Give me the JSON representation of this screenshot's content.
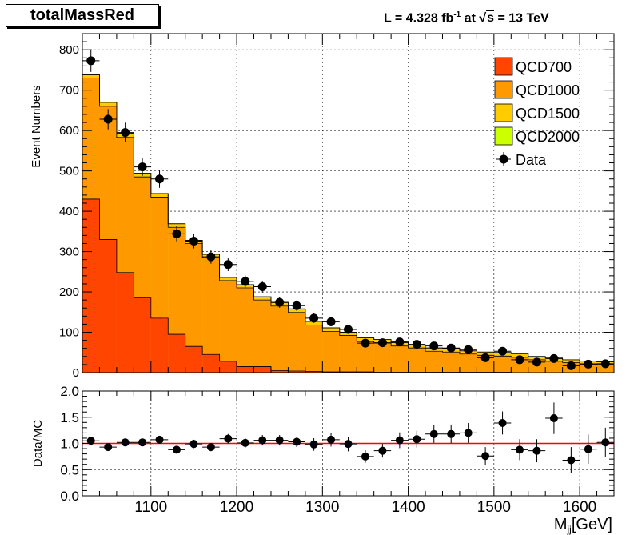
{
  "title": "totalMassRed",
  "luminosity": {
    "prefix": "L = 4.328 fb",
    "exponent": "-1",
    "mid": " at ",
    "root_symbol": "√",
    "energy_var": "s",
    "energy": " = 13 TeV"
  },
  "colors": {
    "QCD700": "#ff4500",
    "QCD1000": "#ff9900",
    "QCD1500": "#ffcc00",
    "QCD2000": "#ccff00",
    "data": "#000000",
    "ratio_line": "#ff0000"
  },
  "chart_data": [
    {
      "type": "bar",
      "stacked": true,
      "ylabel": "Event Numbers",
      "xlim": [
        1020,
        1640
      ],
      "ylim": [
        0,
        840
      ],
      "x_ticks": [
        1100,
        1200,
        1300,
        1400,
        1500,
        1600
      ],
      "y_ticks": [
        0,
        100,
        200,
        300,
        400,
        500,
        600,
        700,
        800
      ],
      "bin_edges": [
        1020,
        1040,
        1060,
        1080,
        1100,
        1120,
        1140,
        1160,
        1180,
        1200,
        1220,
        1240,
        1260,
        1280,
        1300,
        1320,
        1340,
        1360,
        1380,
        1400,
        1420,
        1440,
        1460,
        1480,
        1500,
        1520,
        1540,
        1560,
        1580,
        1600,
        1620,
        1640
      ],
      "series": [
        {
          "name": "QCD700",
          "values": [
            430,
            330,
            248,
            185,
            135,
            95,
            65,
            45,
            28,
            15,
            15,
            5,
            4,
            3,
            2,
            2,
            2,
            1,
            1,
            1,
            1,
            1,
            1,
            1,
            1,
            0,
            0,
            0,
            0,
            0,
            0
          ]
        },
        {
          "name": "QCD1000",
          "values": [
            300,
            330,
            335,
            300,
            300,
            265,
            255,
            240,
            200,
            195,
            165,
            160,
            145,
            115,
            100,
            90,
            75,
            72,
            65,
            60,
            52,
            50,
            45,
            42,
            40,
            38,
            32,
            28,
            25,
            22,
            20
          ]
        },
        {
          "name": "QCD1500",
          "values": [
            8,
            10,
            10,
            9,
            9,
            9,
            8,
            8,
            8,
            8,
            8,
            9,
            9,
            9,
            9,
            8,
            9,
            9,
            8,
            8,
            8,
            9,
            8,
            8,
            9,
            9,
            8,
            8,
            7,
            7,
            7
          ]
        },
        {
          "name": "QCD2000",
          "values": [
            0,
            0,
            0,
            0,
            0,
            0,
            0,
            0,
            0,
            0,
            0,
            0,
            0,
            0,
            0,
            0,
            0,
            0,
            0,
            0,
            0,
            0,
            0,
            0,
            0,
            0,
            0,
            0,
            0,
            0,
            0
          ]
        }
      ],
      "data_series": {
        "name": "Data",
        "x": [
          1030,
          1050,
          1070,
          1090,
          1110,
          1130,
          1150,
          1170,
          1190,
          1210,
          1230,
          1250,
          1270,
          1290,
          1310,
          1330,
          1350,
          1370,
          1390,
          1410,
          1430,
          1450,
          1470,
          1490,
          1510,
          1530,
          1550,
          1570,
          1590,
          1610,
          1630
        ],
        "y": [
          773,
          628,
          595,
          510,
          480,
          344,
          326,
          287,
          268,
          226,
          213,
          174,
          166,
          135,
          126,
          107,
          73,
          74,
          76,
          70,
          66,
          61,
          57,
          37,
          53,
          32,
          26,
          35,
          17,
          21,
          22
        ]
      },
      "legend": {
        "placement": "top-right",
        "entries": [
          "QCD700",
          "QCD1000",
          "QCD1500",
          "QCD2000",
          "Data"
        ]
      },
      "grid": true
    },
    {
      "type": "scatter",
      "ylabel": "Data/MC",
      "xlabel_main": "M",
      "xlabel_sub": "jj",
      "xlabel_unit": "[GeV]",
      "xlim": [
        1020,
        1640
      ],
      "ylim": [
        0,
        2.0
      ],
      "x_ticks": [
        1100,
        1200,
        1300,
        1400,
        1500,
        1600
      ],
      "y_ticks": [
        "0.0",
        "0.5",
        "1.0",
        "1.5",
        "2.0"
      ],
      "reference_line": 1.0,
      "x": [
        1030,
        1050,
        1070,
        1090,
        1110,
        1130,
        1150,
        1170,
        1190,
        1210,
        1230,
        1250,
        1270,
        1290,
        1310,
        1330,
        1350,
        1370,
        1390,
        1410,
        1430,
        1450,
        1470,
        1490,
        1510,
        1530,
        1550,
        1570,
        1590,
        1610,
        1630
      ],
      "y": [
        1.05,
        0.93,
        1.02,
        1.02,
        1.07,
        0.88,
        0.99,
        0.93,
        1.09,
        1.01,
        1.06,
        1.06,
        1.03,
        0.98,
        1.07,
        0.99,
        0.75,
        0.86,
        1.06,
        1.08,
        1.18,
        1.18,
        1.2,
        0.76,
        1.39,
        0.88,
        0.86,
        1.48,
        0.68,
        0.89,
        1.02
      ],
      "yerr": [
        0.05,
        0.06,
        0.06,
        0.07,
        0.07,
        0.07,
        0.08,
        0.08,
        0.09,
        0.09,
        0.1,
        0.1,
        0.1,
        0.12,
        0.13,
        0.14,
        0.12,
        0.13,
        0.15,
        0.16,
        0.17,
        0.18,
        0.19,
        0.17,
        0.22,
        0.2,
        0.22,
        0.3,
        0.25,
        0.28,
        0.28
      ],
      "grid": true
    }
  ]
}
